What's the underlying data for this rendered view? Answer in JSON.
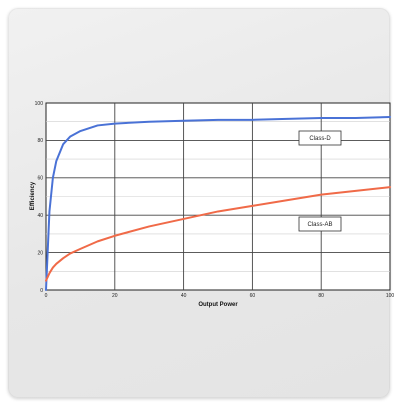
{
  "chart_data": {
    "type": "line",
    "title": "",
    "xlabel": "Output Power",
    "ylabel": "Efficiency",
    "xlim": [
      0,
      100
    ],
    "ylim": [
      0,
      100
    ],
    "x_ticks": [
      "0",
      "20",
      "40",
      "60",
      "80",
      "100"
    ],
    "y_ticks": [
      "0",
      "20",
      "40",
      "60",
      "80",
      "100"
    ],
    "grid": true,
    "series": [
      {
        "name": "Class-D",
        "color": "#4a72d6",
        "x": [
          0,
          1,
          2,
          3,
          5,
          7,
          10,
          15,
          20,
          30,
          40,
          50,
          60,
          70,
          80,
          90,
          100
        ],
        "y": [
          0,
          42,
          60,
          69,
          78,
          82,
          85,
          88,
          89,
          90,
          90.5,
          91,
          91,
          91.5,
          92,
          92,
          92.5
        ]
      },
      {
        "name": "Class-AB",
        "color": "#f06a48",
        "x": [
          0,
          1,
          2,
          3,
          5,
          7,
          10,
          15,
          20,
          30,
          40,
          50,
          60,
          70,
          80,
          90,
          100
        ],
        "y": [
          5,
          9,
          12,
          14,
          17,
          19.5,
          22,
          26,
          29,
          34,
          38,
          42,
          45,
          48,
          51,
          53,
          55
        ]
      }
    ]
  }
}
